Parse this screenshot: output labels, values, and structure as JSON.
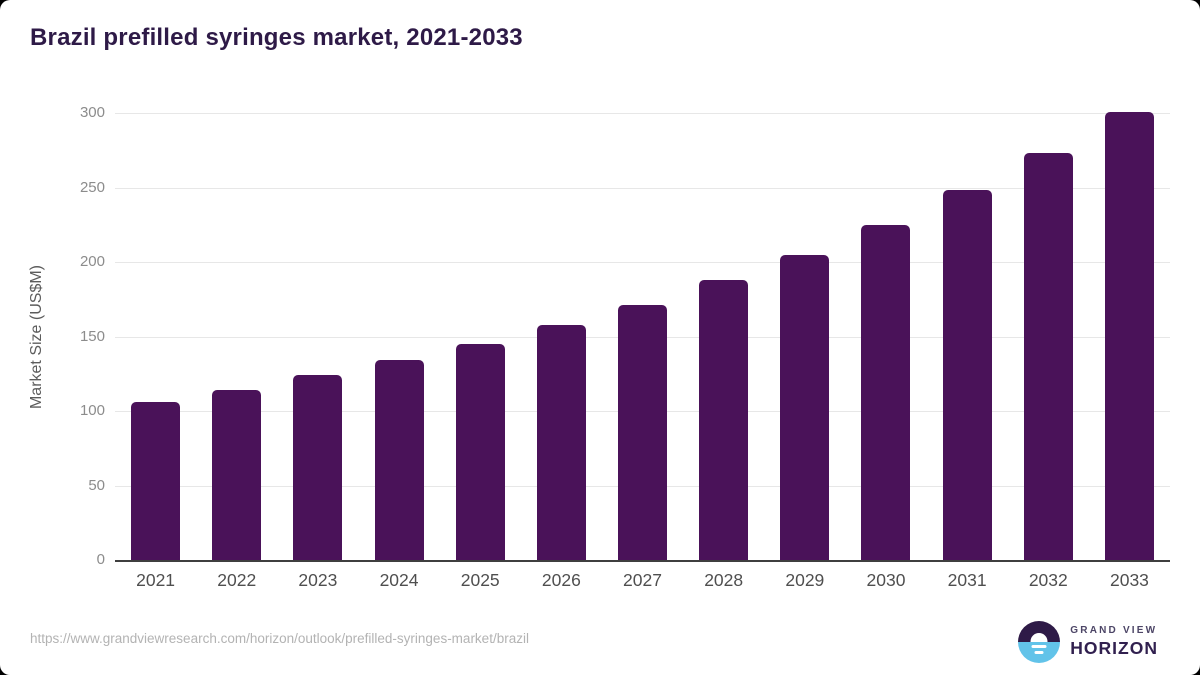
{
  "title": "Brazil prefilled syringes market, 2021-2033",
  "chart_data": {
    "type": "bar",
    "categories": [
      "2021",
      "2022",
      "2023",
      "2024",
      "2025",
      "2026",
      "2027",
      "2028",
      "2029",
      "2030",
      "2031",
      "2032",
      "2033"
    ],
    "values": [
      106,
      114,
      124,
      134,
      145,
      158,
      171,
      188,
      205,
      225,
      248,
      273,
      301
    ],
    "title": "Brazil prefilled syringes market, 2021-2033",
    "xlabel": "",
    "ylabel": "Market Size (US$M)",
    "ylim": [
      0,
      300
    ],
    "yticks": [
      0,
      50,
      100,
      150,
      200,
      250,
      300
    ],
    "grid": true,
    "legend_position": "none",
    "bar_color": "#4a1259"
  },
  "footer": {
    "source_url": "https://www.grandviewresearch.com/horizon/outlook/prefilled-syringes-market/brazil",
    "logo": {
      "line1": "GRAND VIEW",
      "line2": "HORIZON",
      "icon": "horizon-sunset-icon"
    }
  },
  "colors": {
    "bar": "#4a1259",
    "title_text": "#2e1a47",
    "gridline": "#e7e7e7",
    "axis_line": "#3f3f3f",
    "logo_purple": "#2e1a47",
    "logo_blue": "#62c3e9"
  }
}
